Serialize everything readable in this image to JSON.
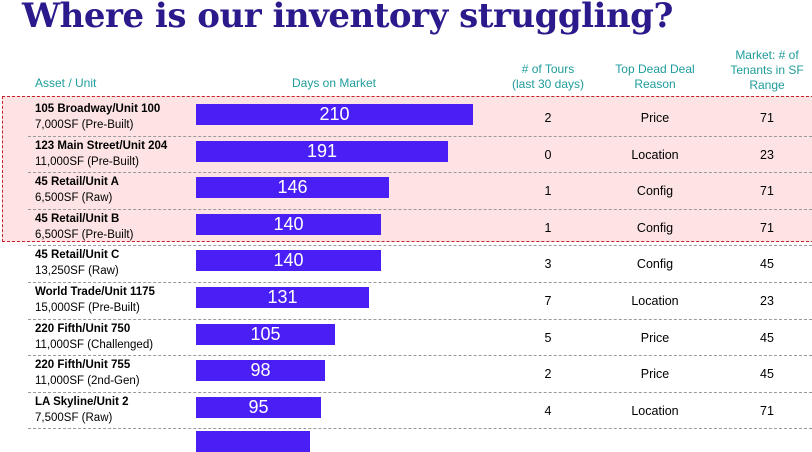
{
  "title": "Where is our inventory struggling?",
  "headers": {
    "asset": "Asset / Unit",
    "days": "Days on Market",
    "tours_line1": "# of Tours",
    "tours_line2": "(last 30 days)",
    "reason_line1": "Top Dead Deal",
    "reason_line2": "Reason",
    "market_line1": "Market: # of",
    "market_line2": "Tenants in SF",
    "market_line3": "Range"
  },
  "colors": {
    "title": "#2a1a8c",
    "header": "#1f9c9c",
    "bar": "#4a1ff5",
    "highlight_fill": "#fde3e3",
    "highlight_border": "#c8202a"
  },
  "chart_data": {
    "type": "bar",
    "orientation": "horizontal",
    "x_max": 210,
    "highlighted_rows": 4,
    "rows": [
      {
        "name": "105 Broadway/Unit 100",
        "detail": "7,000SF (Pre-Built)",
        "days": 210,
        "tours": "2",
        "reason": "Price",
        "market": "71"
      },
      {
        "name": "123 Main Street/Unit  204",
        "detail": "11,000SF (Pre-Built)",
        "days": 191,
        "tours": "0",
        "reason": "Location",
        "market": "23"
      },
      {
        "name": "45 Retail/Unit A",
        "detail": "6,500SF (Raw)",
        "days": 146,
        "tours": "1",
        "reason": "Config",
        "market": "71"
      },
      {
        "name": "45 Retail/Unit B",
        "detail": "6,500SF (Pre-Built)",
        "days": 140,
        "tours": "1",
        "reason": "Config",
        "market": "71"
      },
      {
        "name": "45 Retail/Unit C",
        "detail": "13,250SF (Raw)",
        "days": 140,
        "tours": "3",
        "reason": "Config",
        "market": "45"
      },
      {
        "name": "World Trade/Unit 1175",
        "detail": "15,000SF (Pre-Built)",
        "days": 131,
        "tours": "7",
        "reason": "Location",
        "market": "23"
      },
      {
        "name": "220 Fifth/Unit 750",
        "detail": "11,000SF (Challenged)",
        "days": 105,
        "tours": "5",
        "reason": "Price",
        "market": "45"
      },
      {
        "name": "220 Fifth/Unit 755",
        "detail": "11,000SF (2nd-Gen)",
        "days": 98,
        "tours": "2",
        "reason": "Price",
        "market": "45"
      },
      {
        "name": "LA Skyline/Unit  2",
        "detail": "7,500SF (Raw)",
        "days": 95,
        "tours": "4",
        "reason": "Location",
        "market": "71"
      }
    ]
  }
}
